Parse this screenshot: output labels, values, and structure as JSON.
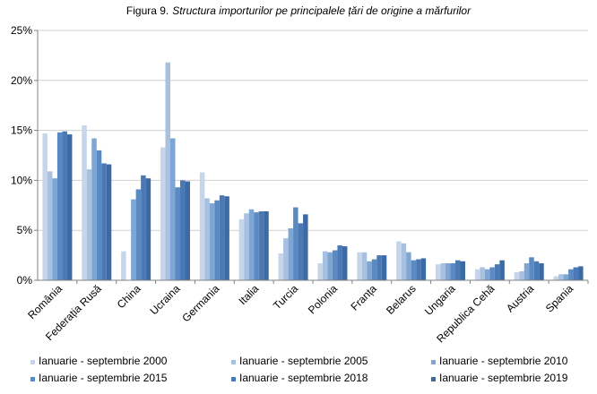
{
  "chart_data": {
    "type": "bar",
    "title_prefix": "Figura 9.",
    "title_main": "Structura importurilor pe principalele țări de origine a mărfurilor",
    "categories": [
      "România",
      "Federația Rusă",
      "China",
      "Ucraina",
      "Germania",
      "Italia",
      "Turcia",
      "Polonia",
      "Franța",
      "Belarus",
      "Ungaria",
      "Republica Cehă",
      "Austria",
      "Spania"
    ],
    "y_ticks": [
      "0%",
      "5%",
      "10%",
      "15%",
      "20%",
      "25%"
    ],
    "ylim": [
      0,
      25
    ],
    "legend_position": "bottom",
    "series": [
      {
        "name": "Ianuarie - septembrie  2000",
        "color": "#c6d5e9",
        "values": [
          14.7,
          15.5,
          2.9,
          13.3,
          10.8,
          6.1,
          2.7,
          1.7,
          2.8,
          3.9,
          1.6,
          1.1,
          0.8,
          0.4
        ]
      },
      {
        "name": "Ianuarie - septembrie  2005",
        "color": "#a9c1e0",
        "values": [
          10.9,
          11.1,
          0.0,
          21.8,
          8.2,
          6.7,
          4.2,
          2.9,
          2.8,
          3.7,
          1.7,
          1.3,
          0.9,
          0.6
        ]
      },
      {
        "name": "Ianuarie - septembrie  2010",
        "color": "#7da6d4",
        "values": [
          10.2,
          14.2,
          8.1,
          14.2,
          7.7,
          7.1,
          5.2,
          2.8,
          1.9,
          2.8,
          1.7,
          1.1,
          1.7,
          0.6
        ]
      },
      {
        "name": "Ianuarie - septembrie  2015",
        "color": "#5b8ac3",
        "values": [
          14.8,
          13.0,
          9.1,
          9.3,
          8.0,
          6.8,
          7.3,
          3.0,
          2.1,
          2.0,
          1.7,
          1.3,
          2.3,
          1.1
        ]
      },
      {
        "name": "Ianuarie - septembrie  2018",
        "color": "#4a79b5",
        "values": [
          14.9,
          11.7,
          10.5,
          10.0,
          8.5,
          6.9,
          5.7,
          3.5,
          2.5,
          2.1,
          2.0,
          1.6,
          1.9,
          1.3
        ]
      },
      {
        "name": "Ianuarie - septembrie  2019",
        "color": "#3c6aa4",
        "values": [
          14.6,
          11.6,
          10.2,
          9.9,
          8.4,
          6.9,
          6.6,
          3.4,
          2.5,
          2.2,
          1.9,
          2.0,
          1.7,
          1.4
        ]
      }
    ]
  }
}
